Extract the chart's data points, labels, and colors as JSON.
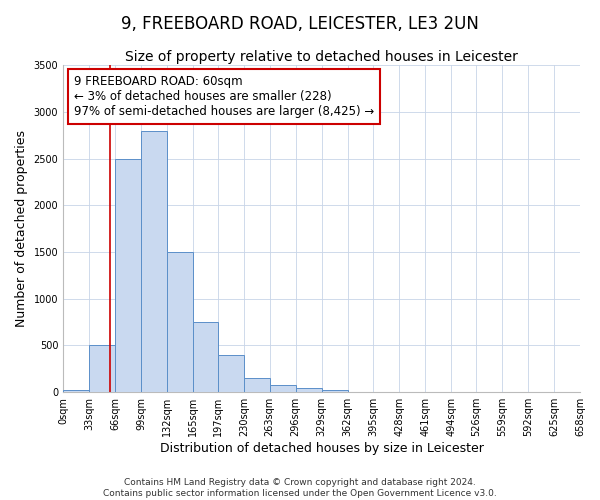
{
  "title": "9, FREEBOARD ROAD, LEICESTER, LE3 2UN",
  "subtitle": "Size of property relative to detached houses in Leicester",
  "xlabel": "Distribution of detached houses by size in Leicester",
  "ylabel": "Number of detached properties",
  "bin_edges": [
    0,
    33,
    66,
    99,
    132,
    165,
    197,
    230,
    263,
    296,
    329,
    362,
    395,
    428,
    461,
    494,
    526,
    559,
    592,
    625,
    658
  ],
  "bar_heights": [
    25,
    500,
    2500,
    2800,
    1500,
    750,
    400,
    150,
    75,
    50,
    25,
    0,
    0,
    0,
    0,
    0,
    0,
    0,
    0,
    0
  ],
  "bar_color": "#c9d9f0",
  "bar_edge_color": "#5b8fc9",
  "property_size": 60,
  "red_line_color": "#cc0000",
  "annotation_box_color": "#cc0000",
  "annotation_text_line1": "9 FREEBOARD ROAD: 60sqm",
  "annotation_text_line2": "← 3% of detached houses are smaller (228)",
  "annotation_text_line3": "97% of semi-detached houses are larger (8,425) →",
  "ylim": [
    0,
    3500
  ],
  "yticks": [
    0,
    500,
    1000,
    1500,
    2000,
    2500,
    3000,
    3500
  ],
  "xtick_labels": [
    "0sqm",
    "33sqm",
    "66sqm",
    "99sqm",
    "132sqm",
    "165sqm",
    "197sqm",
    "230sqm",
    "263sqm",
    "296sqm",
    "329sqm",
    "362sqm",
    "395sqm",
    "428sqm",
    "461sqm",
    "494sqm",
    "526sqm",
    "559sqm",
    "592sqm",
    "625sqm",
    "658sqm"
  ],
  "footer_line1": "Contains HM Land Registry data © Crown copyright and database right 2024.",
  "footer_line2": "Contains public sector information licensed under the Open Government Licence v3.0.",
  "background_color": "#ffffff",
  "grid_color": "#c8d4e8",
  "title_fontsize": 12,
  "subtitle_fontsize": 10,
  "axis_label_fontsize": 9,
  "tick_fontsize": 7,
  "annotation_fontsize": 8.5,
  "footer_fontsize": 6.5
}
